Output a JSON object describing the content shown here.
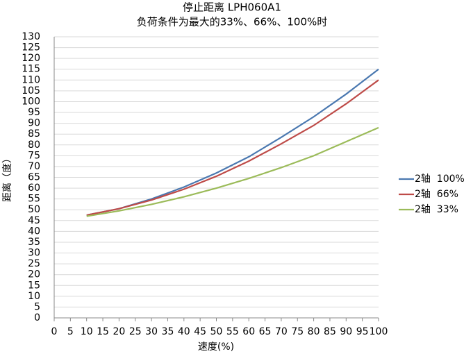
{
  "chart_data": {
    "type": "line",
    "title": "停止距离 LPH060A1",
    "subtitle": "负荷条件为最大的33%、66%、100%时",
    "x_label": "速度(%)",
    "y_label": "距离（度）",
    "x": [
      10,
      20,
      30,
      40,
      50,
      60,
      70,
      80,
      90,
      100
    ],
    "series": [
      {
        "name": "2轴  100%",
        "color": "#4a78b0",
        "values": [
          47.5,
          50.5,
          55,
          60.5,
          67,
          74.5,
          83.5,
          93,
          103.5,
          115
        ]
      },
      {
        "name": "2轴  66%",
        "color": "#be4b48",
        "values": [
          47.5,
          50.5,
          54.5,
          59.5,
          65.5,
          72.5,
          80.5,
          89,
          99,
          110
        ]
      },
      {
        "name": "2轴  33%",
        "color": "#9bbb59",
        "values": [
          47,
          49.5,
          52.5,
          56,
          60,
          64.5,
          69.5,
          75,
          81.5,
          88
        ]
      }
    ],
    "xlim": [
      0,
      100
    ],
    "xticks": [
      0,
      5,
      10,
      15,
      20,
      25,
      30,
      35,
      40,
      45,
      50,
      55,
      60,
      65,
      70,
      75,
      80,
      85,
      90,
      95,
      100
    ],
    "ylim": [
      0,
      130
    ],
    "yticks": [
      0,
      5,
      10,
      15,
      20,
      25,
      30,
      35,
      40,
      45,
      50,
      55,
      60,
      65,
      70,
      75,
      80,
      85,
      90,
      95,
      100,
      105,
      110,
      115,
      120,
      125,
      130
    ],
    "grid": true,
    "legend": "right"
  }
}
